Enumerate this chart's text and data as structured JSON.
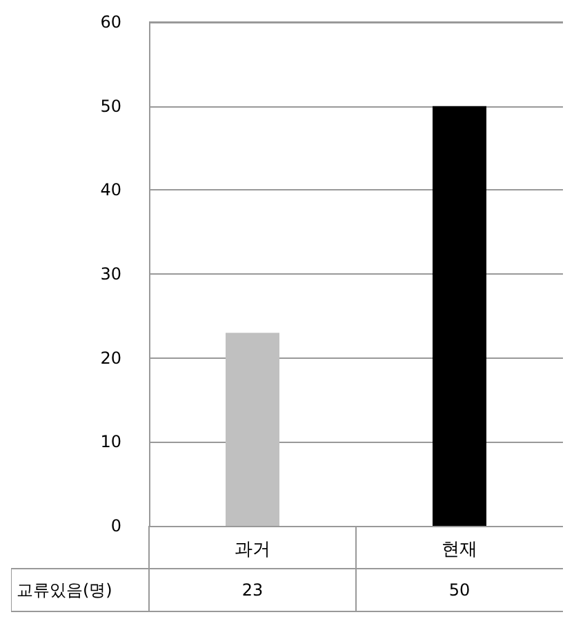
{
  "chart_data": {
    "type": "bar",
    "categories": [
      "과거",
      "현재"
    ],
    "series": [
      {
        "name": "교류있음(명)",
        "values": [
          23,
          50
        ],
        "colors": [
          "#c0c0c0",
          "#000000"
        ]
      }
    ],
    "ylim": [
      0,
      60
    ],
    "yticks": [
      0,
      10,
      20,
      30,
      40,
      50,
      60
    ],
    "grid": "y",
    "data_labels": true,
    "legend": false
  }
}
